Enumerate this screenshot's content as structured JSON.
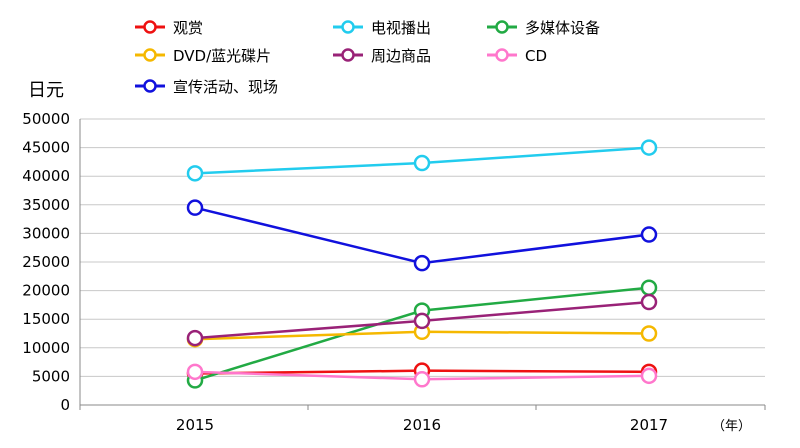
{
  "chart_data": {
    "type": "line",
    "ylabel": "日元",
    "x_unit": "（年）",
    "categories": [
      "2015",
      "2016",
      "2017"
    ],
    "ylim": [
      0,
      50000
    ],
    "yticks": [
      0,
      5000,
      10000,
      15000,
      20000,
      25000,
      30000,
      35000,
      40000,
      45000,
      50000
    ],
    "grid": true,
    "legend_position": "top",
    "series": [
      {
        "name": "观赏",
        "color": "#ee1111",
        "values": [
          5500,
          6000,
          5800
        ]
      },
      {
        "name": "电视播出",
        "color": "#22ccee",
        "values": [
          40500,
          42300,
          45000
        ]
      },
      {
        "name": "多媒体设备",
        "color": "#22aa44",
        "values": [
          4300,
          16500,
          20500
        ]
      },
      {
        "name": "DVD/蓝光碟片",
        "color": "#f5b800",
        "values": [
          11500,
          12800,
          12500
        ]
      },
      {
        "name": "周边商品",
        "color": "#992277",
        "values": [
          11700,
          14700,
          18000
        ]
      },
      {
        "name": "CD",
        "color": "#ff77cc",
        "values": [
          5800,
          4500,
          5100
        ]
      },
      {
        "name": "宣传活动、现场",
        "color": "#1111dd",
        "values": [
          34500,
          24800,
          29800
        ]
      }
    ]
  }
}
